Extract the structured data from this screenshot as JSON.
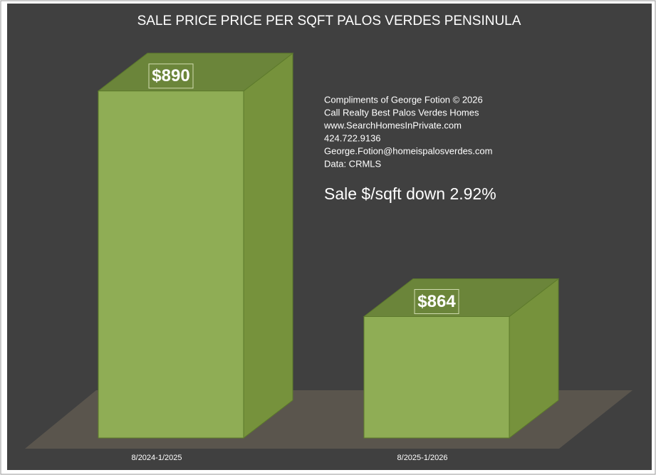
{
  "chart_data": {
    "type": "bar",
    "title": "SALE PRICE PRICE PER SQFT PALOS VERDES PENSINULA",
    "categories": [
      "8/2024-1/2025",
      "8/2025-1/2026"
    ],
    "values": [
      890,
      864
    ],
    "value_labels": [
      "$890",
      "$864"
    ],
    "color": "#8fad55",
    "ylim": [
      850,
      900
    ],
    "annotations": [
      "Compliments of George Fotion © 2026",
      "Call Realty Best Palos Verdes Homes",
      "www.SearchHomesInPrivate.com",
      "424.722.9136",
      "George.Fotion@homeispalosverdes.com",
      "Data: CRMLS"
    ],
    "headline": "Sale $/sqft down 2.92%"
  }
}
